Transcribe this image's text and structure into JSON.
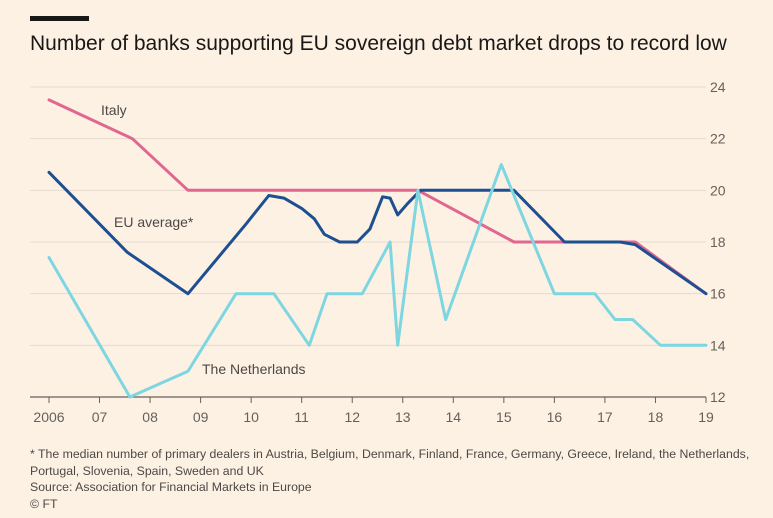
{
  "title": "Number of banks supporting EU sovereign debt market drops to record low",
  "footnote_line1": "* The median number of primary dealers in Austria, Belgium, Denmark, Finland, France, Germany, Greece, Ireland, the Netherlands,",
  "footnote_line2": "Portugal, Slovenia, Spain, Sweden and UK",
  "source": "Source: Association for Financial Markets in Europe",
  "credit": "© FT",
  "chart_data": {
    "type": "line",
    "xlim": [
      2006,
      2019
    ],
    "ylim": [
      12,
      24
    ],
    "xticks": [
      2006,
      2007,
      2008,
      2009,
      2010,
      2011,
      2012,
      2013,
      2014,
      2015,
      2016,
      2017,
      2018,
      2019
    ],
    "xtick_labels": [
      "2006",
      "07",
      "08",
      "09",
      "10",
      "11",
      "12",
      "13",
      "14",
      "15",
      "16",
      "17",
      "18",
      "19"
    ],
    "yticks": [
      12,
      14,
      16,
      18,
      20,
      22,
      24
    ],
    "ytick_labels": [
      "12",
      "14",
      "16",
      "18",
      "20",
      "22",
      "24"
    ],
    "grid": "horizontal",
    "series": [
      {
        "name": "Italy",
        "color": "#e0678f",
        "points": [
          [
            2006,
            23.5
          ],
          [
            2007.65,
            22
          ],
          [
            2008.75,
            20
          ],
          [
            2013.3,
            20
          ],
          [
            2015.2,
            18
          ],
          [
            2016.2,
            18
          ],
          [
            2017.6,
            18
          ],
          [
            2019,
            16
          ]
        ]
      },
      {
        "name": "EU average*",
        "color": "#1d4f91",
        "points": [
          [
            2006,
            20.7
          ],
          [
            2007.55,
            17.6
          ],
          [
            2008.75,
            16
          ],
          [
            2009.9,
            18.7
          ],
          [
            2010.35,
            19.8
          ],
          [
            2010.65,
            19.7
          ],
          [
            2011,
            19.3
          ],
          [
            2011.25,
            18.9
          ],
          [
            2011.45,
            18.3
          ],
          [
            2011.75,
            18
          ],
          [
            2012.1,
            18
          ],
          [
            2012.35,
            18.5
          ],
          [
            2012.6,
            19.75
          ],
          [
            2012.75,
            19.7
          ],
          [
            2012.9,
            19.05
          ],
          [
            2013.1,
            19.5
          ],
          [
            2013.35,
            20
          ],
          [
            2015,
            20
          ],
          [
            2015.2,
            20
          ],
          [
            2016.2,
            18
          ],
          [
            2017.3,
            18
          ],
          [
            2017.6,
            17.9
          ],
          [
            2019,
            16
          ]
        ]
      },
      {
        "name": "The Netherlands",
        "color": "#7dd6e0",
        "points": [
          [
            2006,
            17.4
          ],
          [
            2007.6,
            12
          ],
          [
            2008.75,
            13
          ],
          [
            2009.7,
            16
          ],
          [
            2010.45,
            16
          ],
          [
            2011.15,
            14
          ],
          [
            2011.5,
            16
          ],
          [
            2012.2,
            16
          ],
          [
            2012.75,
            18
          ],
          [
            2012.9,
            14
          ],
          [
            2013.3,
            20
          ],
          [
            2013.85,
            15
          ],
          [
            2014.95,
            21
          ],
          [
            2016.0,
            16
          ],
          [
            2016.8,
            16
          ],
          [
            2017.2,
            15
          ],
          [
            2017.55,
            15
          ],
          [
            2018.1,
            14
          ],
          [
            2019,
            14
          ]
        ]
      }
    ]
  }
}
